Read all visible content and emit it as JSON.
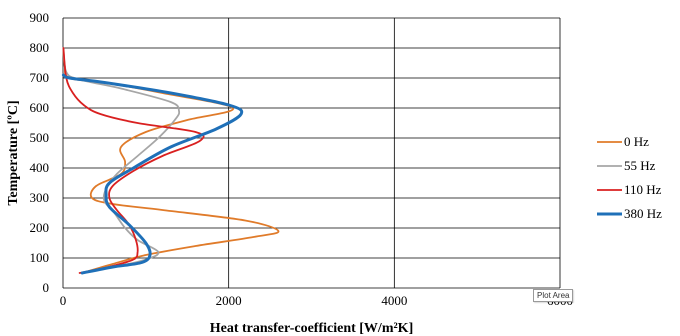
{
  "tooltip": "Plot Area",
  "chart_data": {
    "type": "line",
    "xlabel": "Heat transfer-coefficient [W/m²K]",
    "ylabel": "Temperature [ºC]",
    "xlim": [
      0,
      6000
    ],
    "ylim": [
      0,
      900
    ],
    "xticks": [
      0,
      2000,
      4000,
      6000
    ],
    "yticks": [
      0,
      100,
      200,
      300,
      400,
      500,
      600,
      700,
      800,
      900
    ],
    "grid": "vertical-and-horizontal",
    "legend": "right",
    "series": [
      {
        "name": "0 Hz",
        "color": "#E07B2A",
        "width": 1.8,
        "points": [
          [
            230,
            50
          ],
          [
            600,
            80
          ],
          [
            1000,
            110
          ],
          [
            1600,
            140
          ],
          [
            2300,
            170
          ],
          [
            2600,
            190
          ],
          [
            2200,
            225
          ],
          [
            1200,
            260
          ],
          [
            600,
            280
          ],
          [
            350,
            300
          ],
          [
            400,
            340
          ],
          [
            700,
            380
          ],
          [
            750,
            420
          ],
          [
            700,
            470
          ],
          [
            1000,
            520
          ],
          [
            1500,
            560
          ],
          [
            2050,
            600
          ],
          [
            1200,
            650
          ],
          [
            500,
            685
          ],
          [
            80,
            700
          ],
          [
            20,
            740
          ],
          [
            5,
            800
          ]
        ]
      },
      {
        "name": "55 Hz",
        "color": "#A6A6A6",
        "width": 1.8,
        "points": [
          [
            230,
            50
          ],
          [
            700,
            75
          ],
          [
            1000,
            95
          ],
          [
            1150,
            120
          ],
          [
            900,
            160
          ],
          [
            750,
            200
          ],
          [
            620,
            250
          ],
          [
            500,
            290
          ],
          [
            520,
            330
          ],
          [
            650,
            380
          ],
          [
            900,
            440
          ],
          [
            1150,
            500
          ],
          [
            1350,
            560
          ],
          [
            1400,
            590
          ],
          [
            1300,
            620
          ],
          [
            700,
            665
          ],
          [
            200,
            695
          ],
          [
            40,
            720
          ],
          [
            5,
            800
          ]
        ]
      },
      {
        "name": "110 Hz",
        "color": "#D92020",
        "width": 1.8,
        "points": [
          [
            200,
            50
          ],
          [
            550,
            70
          ],
          [
            850,
            95
          ],
          [
            900,
            120
          ],
          [
            880,
            160
          ],
          [
            800,
            210
          ],
          [
            650,
            260
          ],
          [
            560,
            300
          ],
          [
            600,
            340
          ],
          [
            850,
            390
          ],
          [
            1200,
            440
          ],
          [
            1650,
            490
          ],
          [
            1600,
            520
          ],
          [
            900,
            550
          ],
          [
            450,
            580
          ],
          [
            250,
            610
          ],
          [
            120,
            650
          ],
          [
            40,
            700
          ],
          [
            5,
            800
          ]
        ]
      },
      {
        "name": "380 Hz",
        "color": "#1F70B8",
        "width": 3,
        "points": [
          [
            230,
            50
          ],
          [
            600,
            70
          ],
          [
            950,
            85
          ],
          [
            1050,
            110
          ],
          [
            1000,
            150
          ],
          [
            800,
            210
          ],
          [
            560,
            270
          ],
          [
            520,
            310
          ],
          [
            560,
            350
          ],
          [
            850,
            400
          ],
          [
            1300,
            470
          ],
          [
            1850,
            530
          ],
          [
            2150,
            580
          ],
          [
            2000,
            610
          ],
          [
            1300,
            650
          ],
          [
            500,
            685
          ],
          [
            80,
            700
          ],
          [
            5,
            710
          ]
        ]
      }
    ]
  }
}
